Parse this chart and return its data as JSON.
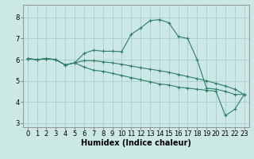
{
  "xlabel": "Humidex (Indice chaleur)",
  "bg_color": "#cce8e4",
  "grid_color": "#aacccc",
  "line_color": "#2e7d6e",
  "xlim": [
    -0.5,
    23.5
  ],
  "ylim": [
    2.8,
    8.6
  ],
  "yticks": [
    3,
    4,
    5,
    6,
    7,
    8
  ],
  "xticks": [
    0,
    1,
    2,
    3,
    4,
    5,
    6,
    7,
    8,
    9,
    10,
    11,
    12,
    13,
    14,
    15,
    16,
    17,
    18,
    19,
    20,
    21,
    22,
    23
  ],
  "series1_x": [
    0,
    1,
    2,
    3,
    4,
    5,
    6,
    7,
    8,
    9,
    10,
    11,
    12,
    13,
    14,
    15,
    16,
    17,
    18,
    19,
    20,
    21,
    22,
    23
  ],
  "series1_y": [
    6.05,
    6.0,
    6.05,
    6.0,
    5.75,
    5.85,
    6.3,
    6.45,
    6.4,
    6.4,
    6.38,
    7.2,
    7.5,
    7.85,
    7.9,
    7.75,
    7.1,
    7.0,
    6.0,
    4.65,
    4.6,
    4.5,
    4.35,
    4.35
  ],
  "series2_x": [
    0,
    1,
    2,
    3,
    4,
    5,
    6,
    7,
    8,
    9,
    10,
    11,
    12,
    13,
    14,
    15,
    16,
    17,
    18,
    19,
    20,
    21,
    22,
    23
  ],
  "series2_y": [
    6.05,
    6.0,
    6.05,
    6.0,
    5.75,
    5.85,
    5.65,
    5.5,
    5.45,
    5.35,
    5.25,
    5.15,
    5.05,
    4.95,
    4.85,
    4.8,
    4.7,
    4.65,
    4.6,
    4.55,
    4.5,
    3.35,
    3.65,
    4.35
  ],
  "series3_x": [
    0,
    1,
    2,
    3,
    4,
    5,
    6,
    7,
    8,
    9,
    10,
    11,
    12,
    13,
    14,
    15,
    16,
    17,
    18,
    19,
    20,
    21,
    22,
    23
  ],
  "series3_y": [
    6.05,
    6.0,
    6.05,
    6.0,
    5.75,
    5.85,
    5.95,
    5.95,
    5.9,
    5.85,
    5.78,
    5.7,
    5.62,
    5.55,
    5.48,
    5.4,
    5.3,
    5.2,
    5.1,
    5.0,
    4.88,
    4.75,
    4.6,
    4.35
  ],
  "xlabel_fontsize": 7,
  "tick_fontsize": 6
}
